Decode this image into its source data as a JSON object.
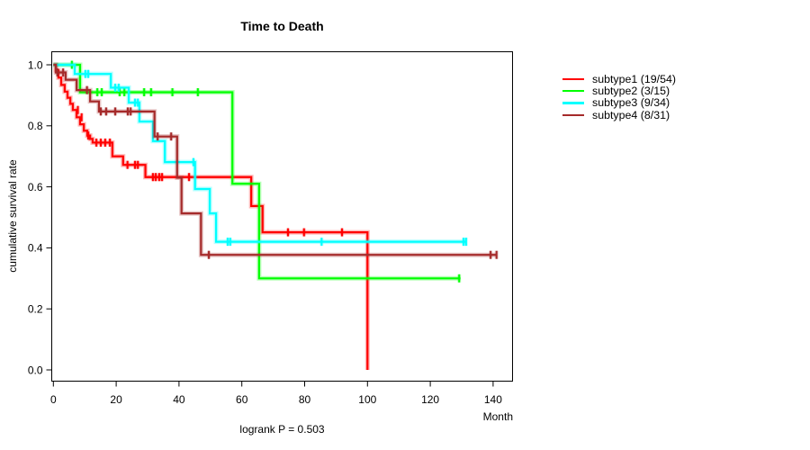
{
  "chart_data": {
    "type": "line",
    "subtype": "kaplan-meier-step-curves",
    "title": "Time to Death",
    "xlabel": "Month",
    "ylabel": "cumulative survival rate",
    "footnote": "logrank P = 0.503",
    "xlim": [
      0,
      146
    ],
    "ylim": [
      0,
      1
    ],
    "grid": "off",
    "legend_position": "right-outside",
    "x_ticks": [
      {
        "label": "0",
        "value": 0
      },
      {
        "label": "20",
        "value": 20
      },
      {
        "label": "40",
        "value": 40
      },
      {
        "label": "60",
        "value": 60
      },
      {
        "label": "80",
        "value": 80
      },
      {
        "label": "100",
        "value": 100
      },
      {
        "label": "120",
        "value": 120
      },
      {
        "label": "140",
        "value": 140
      }
    ],
    "y_ticks": [
      {
        "label": "0.0",
        "value": 0
      },
      {
        "label": "0.2",
        "value": 0.2
      },
      {
        "label": "0.4",
        "value": 0.4
      },
      {
        "label": "0.6",
        "value": 0.6
      },
      {
        "label": "0.8",
        "value": 0.8
      },
      {
        "label": "1.0",
        "value": 1.0
      }
    ],
    "series": [
      {
        "name": "subtype1",
        "legend_label": "subtype1 (19/54)",
        "color": "#FF0000",
        "end_month": 100,
        "steps": [
          [
            0,
            1.0
          ],
          [
            0.8,
            0.982
          ],
          [
            1.6,
            0.958
          ],
          [
            2.5,
            0.934
          ],
          [
            3.6,
            0.912
          ],
          [
            4.5,
            0.892
          ],
          [
            5.4,
            0.872
          ],
          [
            6.2,
            0.852
          ],
          [
            7.4,
            0.828
          ],
          [
            8.5,
            0.805
          ],
          [
            9.7,
            0.784
          ],
          [
            10.8,
            0.768
          ],
          [
            11.7,
            0.757
          ],
          [
            12.5,
            0.745
          ],
          [
            18.8,
            0.7
          ],
          [
            22.2,
            0.672
          ],
          [
            29.3,
            0.632
          ],
          [
            63,
            0.537
          ],
          [
            66.6,
            0.451
          ],
          [
            100,
            0.0
          ]
        ],
        "censors": [
          [
            7.8,
            0.852
          ],
          [
            9.0,
            0.828
          ],
          [
            11.1,
            0.768
          ],
          [
            13.7,
            0.745
          ],
          [
            15.1,
            0.745
          ],
          [
            16.5,
            0.745
          ],
          [
            18,
            0.745
          ],
          [
            23.6,
            0.672
          ],
          [
            26,
            0.672
          ],
          [
            26.9,
            0.672
          ],
          [
            31.7,
            0.632
          ],
          [
            32.6,
            0.632
          ],
          [
            33.7,
            0.632
          ],
          [
            34.6,
            0.632
          ],
          [
            43.2,
            0.632
          ],
          [
            74.7,
            0.451
          ],
          [
            79.8,
            0.451
          ],
          [
            91.9,
            0.451
          ]
        ]
      },
      {
        "name": "subtype2",
        "legend_label": "subtype2 (3/15)",
        "color": "#00FF00",
        "end_month": 129.6,
        "steps": [
          [
            0,
            1.0
          ],
          [
            8.5,
            0.91
          ],
          [
            57,
            0.61
          ],
          [
            65.5,
            0.3
          ]
        ],
        "censors": [
          [
            5.9,
            1.0
          ],
          [
            14,
            0.91
          ],
          [
            15.4,
            0.91
          ],
          [
            21.1,
            0.91
          ],
          [
            22.6,
            0.91
          ],
          [
            28.9,
            0.91
          ],
          [
            31.1,
            0.91
          ],
          [
            37.9,
            0.91
          ],
          [
            46,
            0.91
          ],
          [
            129.2,
            0.3
          ]
        ]
      },
      {
        "name": "subtype3",
        "legend_label": "subtype3 (9/34)",
        "color": "#00FFFF",
        "end_month": 131.4,
        "steps": [
          [
            0,
            1.0
          ],
          [
            6.8,
            0.97
          ],
          [
            18.3,
            0.925
          ],
          [
            24,
            0.876
          ],
          [
            27.4,
            0.814
          ],
          [
            31.7,
            0.75
          ],
          [
            35.5,
            0.681
          ],
          [
            45.1,
            0.593
          ],
          [
            49.8,
            0.513
          ],
          [
            51.8,
            0.42
          ]
        ],
        "censors": [
          [
            10.2,
            0.97
          ],
          [
            11.1,
            0.97
          ],
          [
            19.7,
            0.925
          ],
          [
            20.8,
            0.925
          ],
          [
            26,
            0.876
          ],
          [
            26.9,
            0.876
          ],
          [
            44.6,
            0.681
          ],
          [
            55.5,
            0.42
          ],
          [
            56.3,
            0.42
          ],
          [
            85.4,
            0.42
          ],
          [
            130.6,
            0.42
          ],
          [
            131.4,
            0.42
          ]
        ]
      },
      {
        "name": "subtype4",
        "legend_label": "subtype4 (8/31)",
        "color": "#A52A2A",
        "end_month": 141.1,
        "steps": [
          [
            0,
            1.0
          ],
          [
            0.8,
            0.975
          ],
          [
            3.9,
            0.951
          ],
          [
            7.4,
            0.917
          ],
          [
            11.7,
            0.88
          ],
          [
            14.5,
            0.847
          ],
          [
            32.2,
            0.765
          ],
          [
            39.4,
            0.63
          ],
          [
            40.8,
            0.513
          ],
          [
            47,
            0.377
          ]
        ],
        "censors": [
          [
            1.3,
            0.975
          ],
          [
            3.1,
            0.975
          ],
          [
            10.7,
            0.917
          ],
          [
            15.1,
            0.847
          ],
          [
            16.8,
            0.847
          ],
          [
            19.7,
            0.847
          ],
          [
            23.7,
            0.847
          ],
          [
            24.6,
            0.847
          ],
          [
            33.2,
            0.765
          ],
          [
            37.5,
            0.765
          ],
          [
            49.5,
            0.377
          ],
          [
            139.2,
            0.377
          ],
          [
            141.1,
            0.377
          ]
        ]
      }
    ]
  }
}
